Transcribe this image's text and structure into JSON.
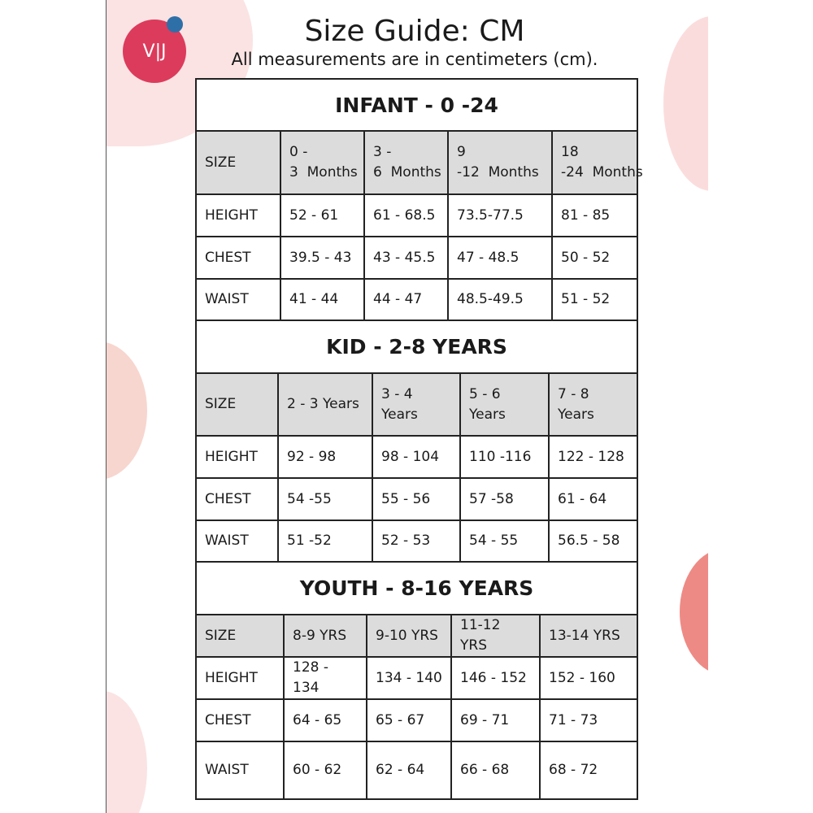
{
  "logo_text": "V|J",
  "title": "Size Guide: CM",
  "subtitle": "All measurements are in centimeters (cm).",
  "colors": {
    "logo": "#dc3b5c",
    "logo_dot": "#2f6fa8",
    "header_fill": "#dcdcdc"
  },
  "sections": [
    {
      "title": "INFANT - 0 -24",
      "headers": [
        "SIZE",
        "0 - 3  Months",
        "3 - 6  Months",
        "9 -12  Months",
        "18 -24  Months"
      ],
      "rows": [
        [
          "HEIGHT",
          "52 - 61",
          "61 - 68.5",
          "73.5-77.5",
          "81 - 85"
        ],
        [
          "CHEST",
          "39.5 - 43",
          "43 - 45.5",
          "47 - 48.5",
          "50 - 52"
        ],
        [
          "WAIST",
          "41 - 44",
          "44 - 47",
          "48.5-49.5",
          "51 - 52"
        ]
      ]
    },
    {
      "title": "KID - 2-8 YEARS",
      "headers": [
        "SIZE",
        "2 - 3 Years",
        "3 - 4 Years",
        "5 - 6 Years",
        "7 - 8 Years"
      ],
      "rows": [
        [
          "HEIGHT",
          "92 - 98",
          "98 - 104",
          "110 -116",
          "122 - 128"
        ],
        [
          "CHEST",
          "54 -55",
          "55 - 56",
          "57 -58",
          "61 - 64"
        ],
        [
          "WAIST",
          "51 -52",
          "52 - 53",
          "54 - 55",
          "56.5 - 58"
        ]
      ]
    },
    {
      "title": "YOUTH - 8-16 YEARS",
      "headers": [
        "SIZE",
        "8-9 YRS",
        "9-10 YRS",
        "11-12 YRS",
        "13-14 YRS"
      ],
      "rows": [
        [
          "HEIGHT",
          "128 - 134",
          "134 - 140",
          "146 - 152",
          "152 - 160"
        ],
        [
          "CHEST",
          "64 - 65",
          "65 - 67",
          "69 - 71",
          "71 - 73"
        ],
        [
          "WAIST",
          "60 - 62",
          "62 - 64",
          "66 - 68",
          "68 - 72"
        ]
      ]
    }
  ]
}
